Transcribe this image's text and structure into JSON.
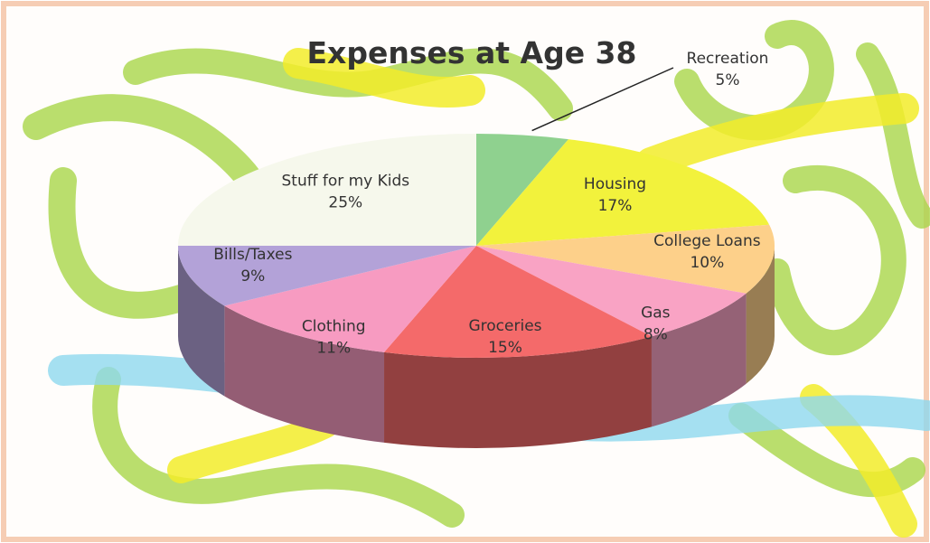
{
  "chart_data": {
    "type": "pie",
    "title": "Expenses at Age 38",
    "categories": [
      "Recreation",
      "Housing",
      "College Loans",
      "Gas",
      "Groceries",
      "Clothing",
      "Bills/Taxes",
      "Stuff for my Kids"
    ],
    "values": [
      5,
      17,
      10,
      8,
      15,
      11,
      9,
      25
    ],
    "value_labels": [
      "5%",
      "17%",
      "10%",
      "8%",
      "15%",
      "11%",
      "9%",
      "25%"
    ],
    "colors": [
      "#8fd18f",
      "#f2f23c",
      "#fdd08a",
      "#f9a3c4",
      "#f46a6a",
      "#f79bc1",
      "#b3a2d8",
      "#f6f8ec"
    ]
  }
}
